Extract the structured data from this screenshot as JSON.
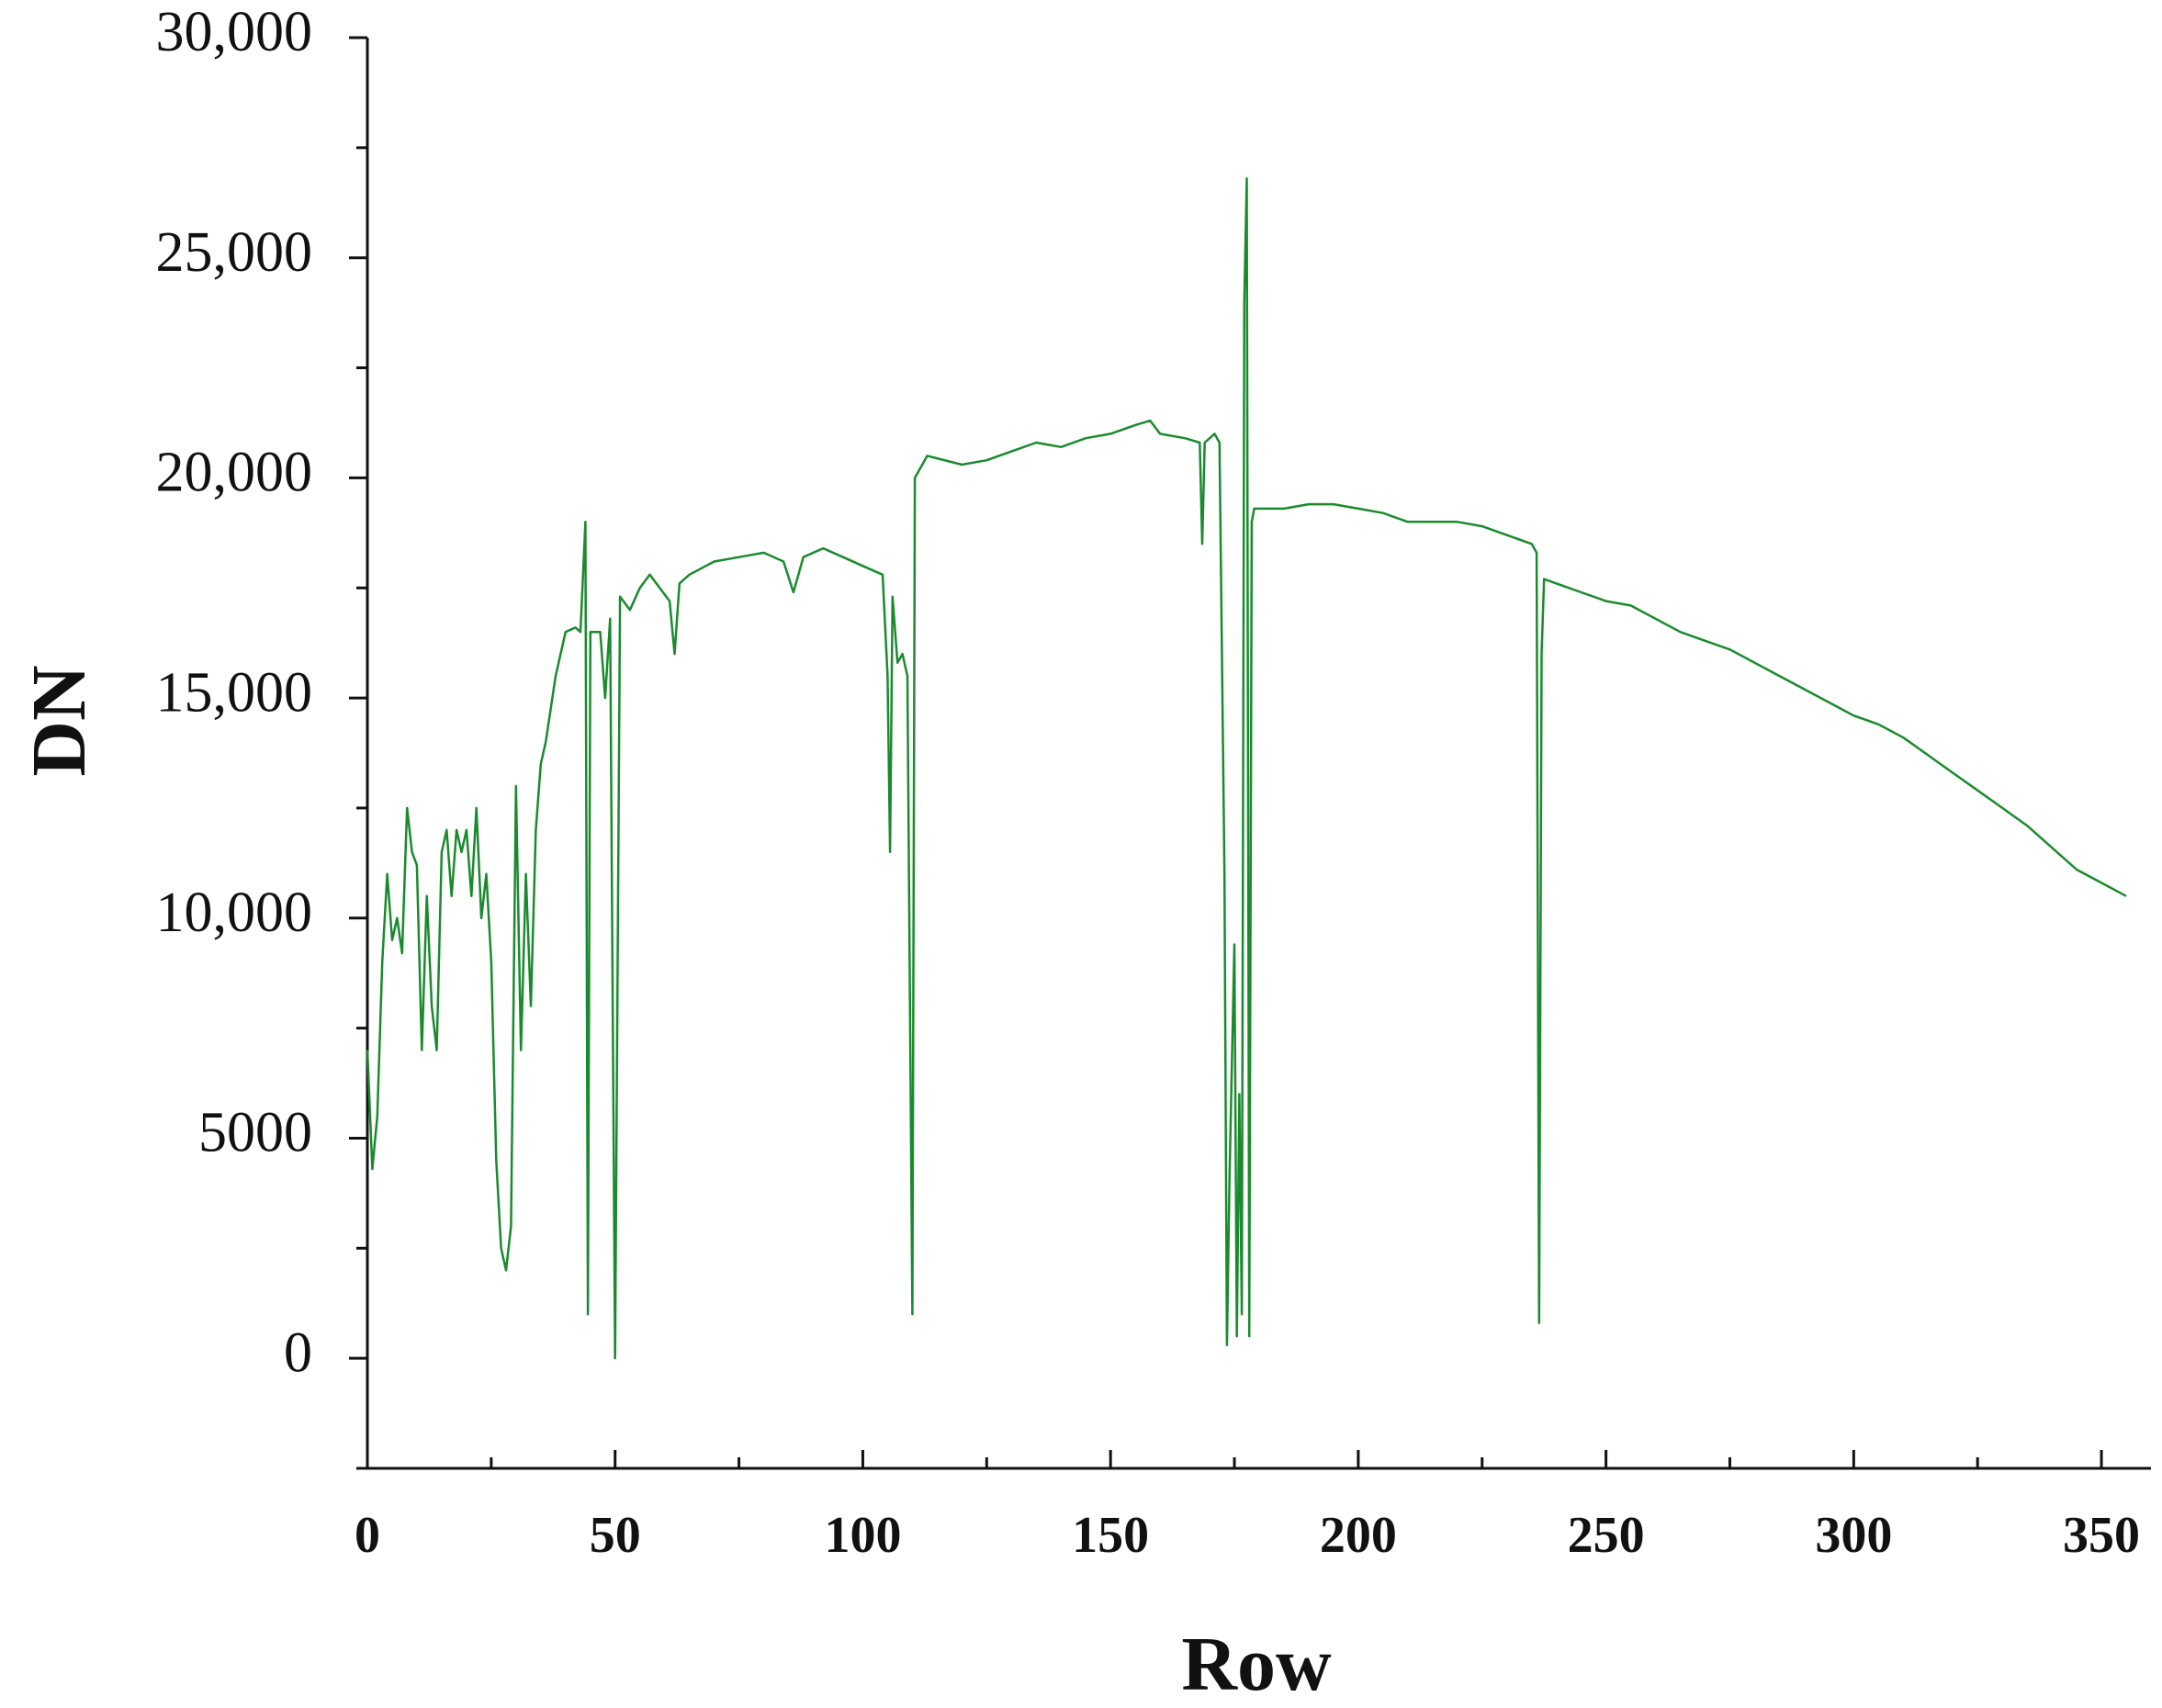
{
  "chart_data": {
    "type": "line",
    "xlabel": "Row",
    "ylabel": "DN",
    "xlim": [
      0,
      360
    ],
    "ylim": [
      -2500,
      30000
    ],
    "xticks": [
      0,
      50,
      100,
      150,
      200,
      250,
      300,
      350
    ],
    "xticks_minor": [
      25,
      75,
      125,
      175,
      225,
      275,
      325
    ],
    "yticks": [
      0,
      5000,
      {
        "value": 10000,
        "label": "10,000"
      },
      {
        "value": 15000,
        "label": "15,000"
      },
      {
        "value": 20000,
        "label": "20,000"
      },
      {
        "value": 25000,
        "label": "25,000"
      },
      {
        "value": 30000,
        "label": "30,000"
      }
    ],
    "yticks_minor": [
      -2500,
      2500,
      7500,
      12500,
      17500,
      22500,
      27500
    ],
    "grid": false,
    "series": [
      {
        "color": "#1b8a2e",
        "x": [
          0,
          1,
          2,
          3,
          4,
          5,
          6,
          7,
          8,
          9,
          10,
          11,
          12,
          13,
          14,
          15,
          16,
          17,
          18,
          19,
          20,
          21,
          22,
          23,
          24,
          25,
          26,
          27,
          28,
          29,
          30,
          31,
          32,
          33,
          34,
          35,
          36,
          38,
          40,
          42,
          43,
          44,
          44.5,
          45,
          47,
          48,
          49,
          50,
          51,
          53,
          55,
          57,
          59,
          61,
          62,
          63,
          65,
          70,
          75,
          80,
          84,
          86,
          88,
          92,
          96,
          100,
          104,
          105,
          105.5,
          106,
          107,
          108,
          109,
          110,
          110.5,
          113,
          120,
          125,
          130,
          135,
          140,
          145,
          150,
          155,
          158,
          160,
          165,
          168,
          168.5,
          169,
          171,
          172,
          173,
          173.5,
          174,
          175,
          175.5,
          176,
          176.5,
          177,
          177.5,
          178,
          178.5,
          179,
          185,
          190,
          195,
          200,
          205,
          210,
          215,
          220,
          225,
          230,
          235,
          236,
          236.5,
          237,
          237.5,
          240,
          245,
          250,
          255,
          260,
          265,
          270,
          275,
          280,
          285,
          290,
          295,
          300,
          305,
          310,
          315,
          320,
          325,
          330,
          335,
          340,
          345,
          350,
          355
        ],
        "values": [
          7000,
          4300,
          5500,
          9000,
          11000,
          9500,
          10000,
          9200,
          12500,
          11500,
          11200,
          7000,
          10500,
          8000,
          7000,
          11500,
          12000,
          10500,
          12000,
          11500,
          12000,
          10500,
          12500,
          10000,
          11000,
          9000,
          4500,
          2500,
          2000,
          3000,
          13000,
          7000,
          11000,
          8000,
          12000,
          13500,
          14000,
          15500,
          16500,
          16600,
          16500,
          19000,
          1000,
          16500,
          16500,
          15000,
          16800,
          0,
          17300,
          17000,
          17500,
          17800,
          17500,
          17200,
          16000,
          17600,
          17800,
          18100,
          18200,
          18300,
          18100,
          17400,
          18200,
          18400,
          18200,
          18000,
          17800,
          15500,
          11500,
          17300,
          15800,
          16000,
          15500,
          1000,
          20000,
          20500,
          20300,
          20400,
          20600,
          20800,
          20700,
          20900,
          21000,
          21200,
          21300,
          21000,
          20900,
          20800,
          18500,
          20800,
          21000,
          20800,
          11000,
          300,
          4000,
          9400,
          500,
          6000,
          1000,
          24000,
          26800,
          500,
          19000,
          19300,
          19300,
          19400,
          19400,
          19300,
          19200,
          19000,
          19000,
          19000,
          18900,
          18700,
          18500,
          18300,
          800,
          16000,
          17700,
          17600,
          17400,
          17200,
          17100,
          16800,
          16500,
          16300,
          16100,
          15800,
          15500,
          15200,
          14900,
          14600,
          14400,
          14100,
          13700,
          13300,
          12900,
          12500,
          12100,
          11600,
          11100,
          10800,
          10500
        ]
      }
    ]
  }
}
